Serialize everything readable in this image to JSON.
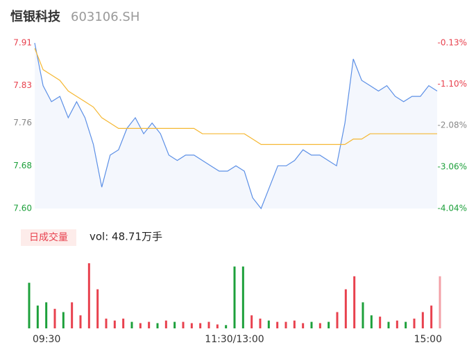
{
  "header": {
    "name": "恒银科技",
    "code": "603106.SH"
  },
  "chart_data": [
    {
      "type": "line",
      "x": [
        0,
        5,
        10,
        15,
        20,
        25,
        30,
        35,
        40,
        45,
        50,
        55,
        60,
        65,
        70,
        75,
        80,
        85,
        90,
        95,
        100,
        105,
        110,
        115,
        120,
        125,
        130,
        135,
        140,
        145,
        150,
        155,
        160,
        165,
        170,
        175,
        180,
        185,
        190,
        195,
        200,
        205,
        210,
        215,
        220,
        225,
        230,
        235,
        240
      ],
      "xlim": [
        0,
        240
      ],
      "series": [
        {
          "color": "#5b8fe6",
          "values": [
            7.91,
            7.83,
            7.8,
            7.81,
            7.77,
            7.8,
            7.77,
            7.72,
            7.64,
            7.7,
            7.71,
            7.75,
            7.77,
            7.74,
            7.76,
            7.74,
            7.7,
            7.69,
            7.7,
            7.7,
            7.69,
            7.68,
            7.67,
            7.67,
            7.68,
            7.67,
            7.62,
            7.6,
            7.64,
            7.68,
            7.68,
            7.69,
            7.71,
            7.7,
            7.7,
            7.69,
            7.68,
            7.76,
            7.88,
            7.84,
            7.83,
            7.82,
            7.83,
            7.81,
            7.8,
            7.81,
            7.81,
            7.83,
            7.82
          ]
        },
        {
          "color": "#f5b731",
          "values": [
            7.9,
            7.86,
            7.85,
            7.84,
            7.82,
            7.81,
            7.8,
            7.79,
            7.77,
            7.76,
            7.75,
            7.75,
            7.75,
            7.75,
            7.75,
            7.75,
            7.75,
            7.75,
            7.75,
            7.75,
            7.74,
            7.74,
            7.74,
            7.74,
            7.74,
            7.74,
            7.73,
            7.72,
            7.72,
            7.72,
            7.72,
            7.72,
            7.72,
            7.72,
            7.72,
            7.72,
            7.72,
            7.72,
            7.73,
            7.73,
            7.74,
            7.74,
            7.74,
            7.74,
            7.74,
            7.74,
            7.74,
            7.74,
            7.74
          ]
        }
      ],
      "area_color": "#f4f7fd",
      "ylim": [
        7.6,
        7.91
      ],
      "yticks": [
        {
          "value": 7.6,
          "label": "7.60"
        },
        7.68,
        7.76,
        7.83,
        7.91
      ],
      "ytick_colors": [
        "#1da03b",
        "#1da03b",
        "#888888",
        "#e8414e",
        "#e8414e"
      ],
      "y2lim": [
        -4.04,
        -0.13
      ],
      "y2ticks": [
        {
          "value": -4.04,
          "label": "-4.04%"
        },
        {
          "value": -3.06,
          "label": "-3.06%"
        },
        {
          "value": -2.08,
          "label": "-2.08%"
        },
        {
          "value": -1.1,
          "label": "-1.10%"
        },
        {
          "value": -0.13,
          "label": "-0.13%"
        }
      ],
      "y2tick_colors": [
        "#1da03b",
        "#1da03b",
        "#888888",
        "#e8414e",
        "#e8414e"
      ]
    },
    {
      "type": "bar",
      "title": "日成交量",
      "subtitle": "vol: 48.71万手",
      "x": [
        0,
        5,
        10,
        15,
        20,
        25,
        30,
        35,
        40,
        45,
        50,
        55,
        60,
        65,
        70,
        75,
        80,
        85,
        90,
        95,
        100,
        105,
        110,
        115,
        120,
        125,
        130,
        135,
        140,
        145,
        150,
        155,
        160,
        165,
        170,
        175,
        180,
        185,
        190,
        195,
        200,
        205,
        210,
        215,
        220,
        225,
        230,
        235,
        240
      ],
      "xlim": [
        0,
        240
      ],
      "values": [
        70,
        35,
        40,
        30,
        25,
        40,
        20,
        100,
        60,
        15,
        12,
        15,
        10,
        8,
        10,
        8,
        12,
        10,
        10,
        8,
        8,
        10,
        6,
        5,
        95,
        95,
        20,
        15,
        12,
        10,
        10,
        12,
        8,
        10,
        8,
        10,
        25,
        60,
        80,
        40,
        20,
        18,
        10,
        12,
        10,
        15,
        25,
        35,
        80
      ],
      "colors": [
        "#1da03b",
        "#1da03b",
        "#1da03b",
        "#e8414e",
        "#1da03b",
        "#e8414e",
        "#e8414e",
        "#e8414e",
        "#e8414e",
        "#e8414e",
        "#e8414e",
        "#e8414e",
        "#1da03b",
        "#e8414e",
        "#e8414e",
        "#1da03b",
        "#e8414e",
        "#1da03b",
        "#e8414e",
        "#e8414e",
        "#e8414e",
        "#e8414e",
        "#e8414e",
        "#1da03b",
        "#1da03b",
        "#1da03b",
        "#e8414e",
        "#e8414e",
        "#1da03b",
        "#e8414e",
        "#e8414e",
        "#e8414e",
        "#e8414e",
        "#1da03b",
        "#e8414e",
        "#1da03b",
        "#e8414e",
        "#e8414e",
        "#e8414e",
        "#1da03b",
        "#1da03b",
        "#e8414e",
        "#1da03b",
        "#e8414e",
        "#1da03b",
        "#e8414e",
        "#e8414e",
        "#e8414e",
        "#f3a0a7"
      ],
      "ylim": [
        0,
        100
      ],
      "xticks": [
        {
          "value": 0,
          "label": "09:30"
        },
        {
          "value": 120,
          "label": "11:30/13:00"
        },
        {
          "value": 240,
          "label": "15:00"
        }
      ]
    }
  ]
}
